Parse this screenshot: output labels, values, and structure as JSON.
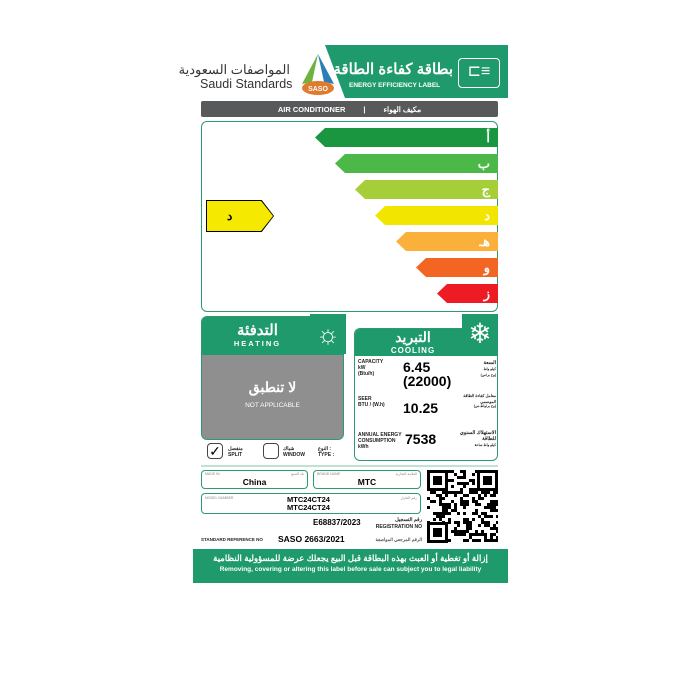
{
  "header": {
    "org_ar": "المواصفات السعودية",
    "org_en": "Saudi Standards",
    "logo_text": "SASO",
    "title_ar": "بطاقة كفاءة الطاقة",
    "title_en": "ENERGY EFFICIENCY LABEL",
    "plug_icon": "ac-plug-icon"
  },
  "product": {
    "en": "AIR CONDITIONER",
    "sep": "|",
    "ar": "مكيف الهواء"
  },
  "rating": {
    "classes": [
      {
        "letter": "أ",
        "color": "#1a9641"
      },
      {
        "letter": "ب",
        "color": "#4cb848"
      },
      {
        "letter": "ج",
        "color": "#a6ce39"
      },
      {
        "letter": "د",
        "color": "#f2e500"
      },
      {
        "letter": "هـ",
        "color": "#fbb03b"
      },
      {
        "letter": "و",
        "color": "#f26522"
      },
      {
        "letter": "ز",
        "color": "#ed1c24"
      }
    ],
    "selected": "د"
  },
  "heating": {
    "title_ar": "التدفئة",
    "title_en": "HEATING",
    "na_ar": "لا تنطبق",
    "na_en": "NOT APPLICABLE",
    "icon": "sun-icon"
  },
  "cooling": {
    "title_ar": "التبريد",
    "title_en": "COOLING",
    "icon": "snowflake-icon",
    "capacity": {
      "label": "CAPACITY",
      "unit1": "kW",
      "unit2": "(Btu/h)",
      "value_kw": "6.45",
      "value_btu": "(22000)",
      "label_ar": "السعة",
      "unit_ar1": "كيلو واط",
      "unit_ar2": "(وح بر/س)"
    },
    "seer": {
      "label": "SEER",
      "unit": "BTU / (W.h)",
      "value": "10.25",
      "label_ar": "معامل كفاءة الطاقة الموسمي",
      "unit_ar": "(وح بر/واط.س)"
    },
    "annual": {
      "label1": "ANNUAL ENERGY",
      "label2": "CONSUMPTION",
      "unit": "kWh",
      "value": "7538",
      "label_ar1": "الاستهلاك السنوي",
      "label_ar2": "للطاقة",
      "unit_ar": "كيلو واط ساعة"
    }
  },
  "type": {
    "split_ar": "منفصل",
    "split_en": "SPLIT",
    "split_checked": true,
    "window_ar": "شباك",
    "window_en": "WINDOW",
    "window_checked": false,
    "label_ar": "النوع :",
    "label_en": "TYPE :"
  },
  "info": {
    "made_in_label": "MADE IN",
    "made_in_ar": "بلد الصنع",
    "made_in": "China",
    "brand_label": "BRAND NAME",
    "brand_ar": "العلامة التجارية",
    "brand": "MTC",
    "model_label": "MODEL NUMBER",
    "model_ar": "رقم الطراز",
    "model1": "MTC24CT24",
    "model2": "MTC24CT24",
    "reg_ar": "رقم التسجيل",
    "reg_label": "REGISTRATION NO",
    "reg": "E68837/2023",
    "std_label": "STANDARD REFERENCE NO",
    "std": "SASO 2663/2021",
    "std_ar": "الرقم المرجعي المواصفة"
  },
  "footer": {
    "ar": "إزالة أو تغطية أو العبث بهذه البطاقة قبل البيع يجعلك عرضة للمسؤولية النظامية",
    "en": "Removing, covering or altering this label before sale can subject you to legal liability"
  }
}
